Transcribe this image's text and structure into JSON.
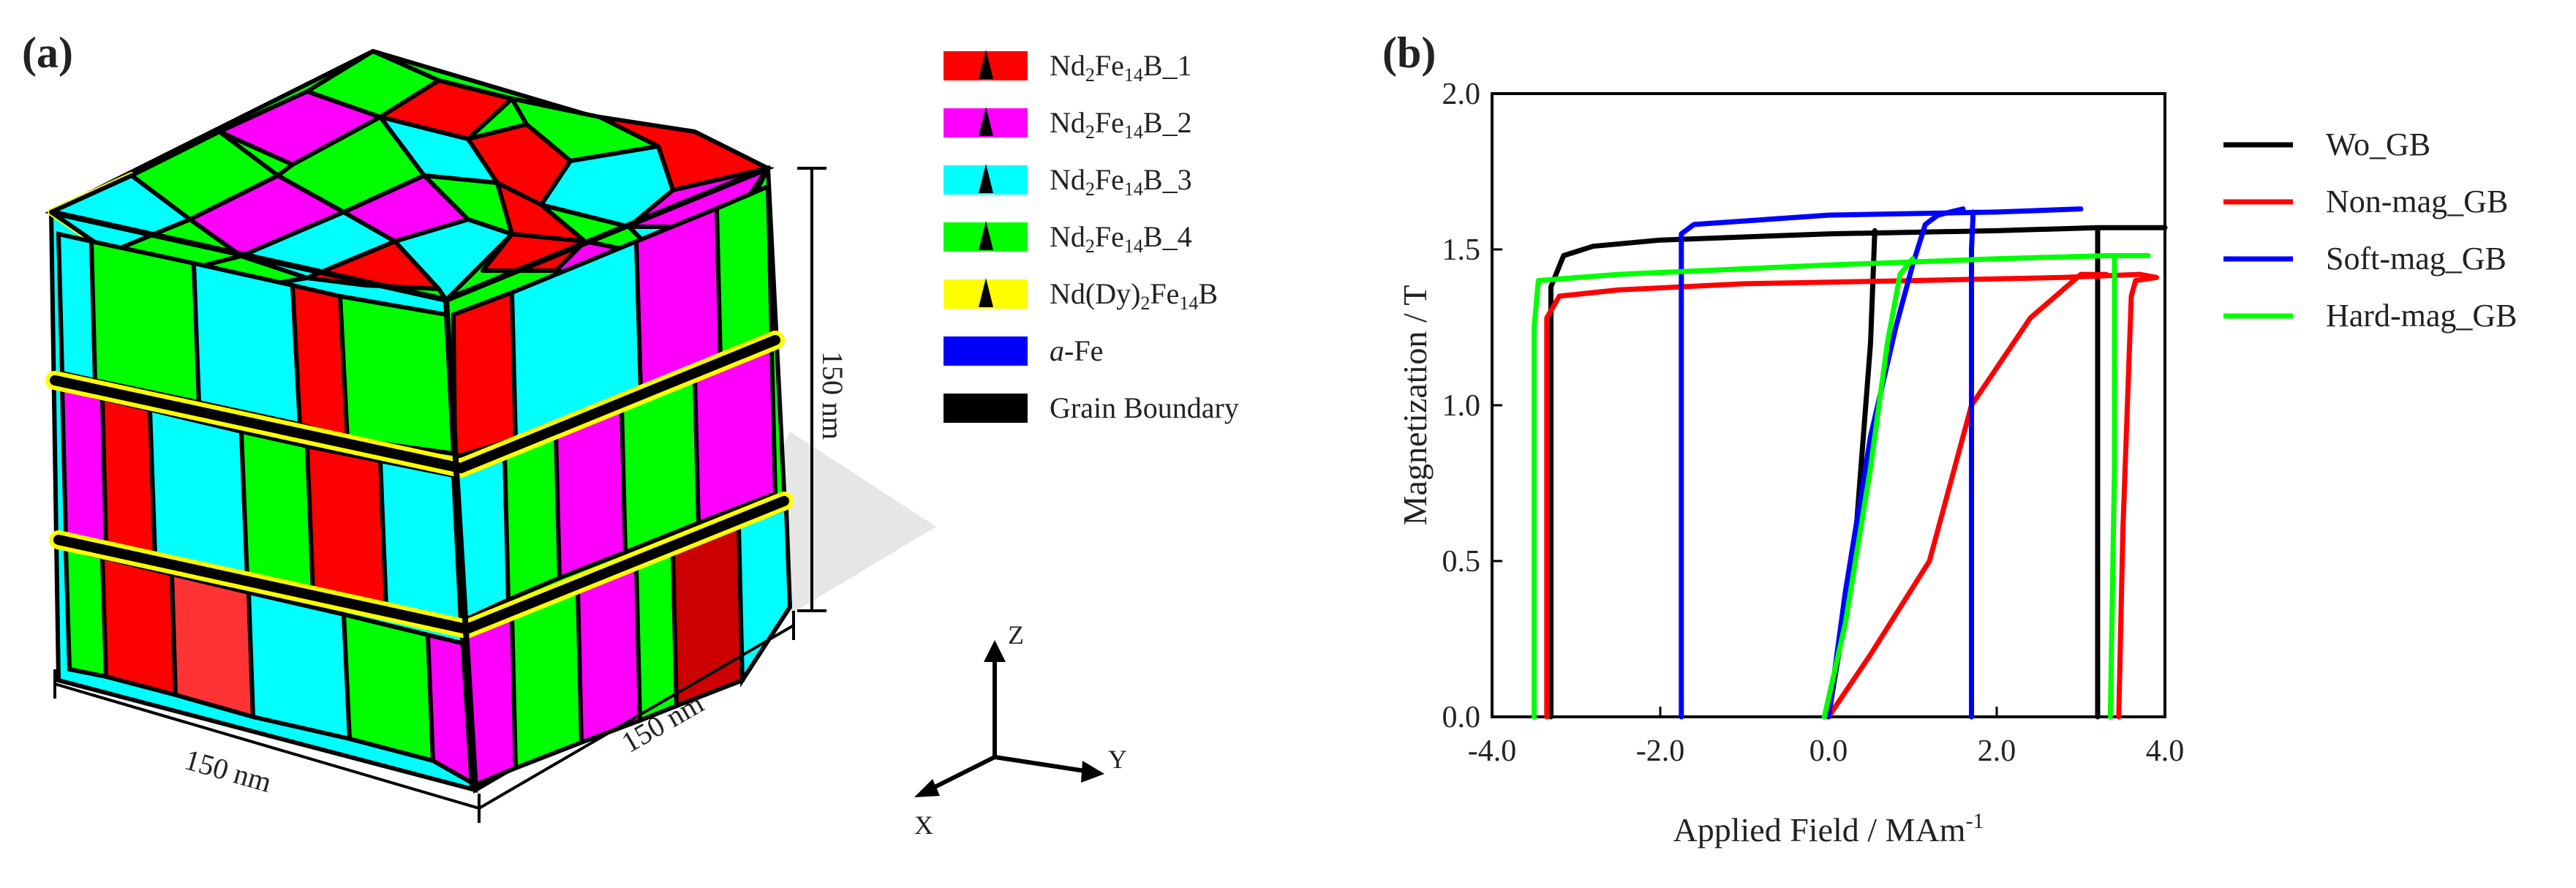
{
  "panel_a": {
    "label": "(a)",
    "dim_bottom": "150 nm",
    "dim_right": "150 nm",
    "dim_height": "150 nm",
    "axes": {
      "z": "Z",
      "y": "Y",
      "x": "X"
    },
    "legend": [
      {
        "base": "Nd",
        "s1": "2",
        "mid": "Fe",
        "s2": "14",
        "tail": "B_1",
        "color": "#ff0000"
      },
      {
        "base": "Nd",
        "s1": "2",
        "mid": "Fe",
        "s2": "14",
        "tail": "B_2",
        "color": "#ff00ff"
      },
      {
        "base": "Nd",
        "s1": "2",
        "mid": "Fe",
        "s2": "14",
        "tail": "B_3",
        "color": "#00ffff"
      },
      {
        "base": "Nd",
        "s1": "2",
        "mid": "Fe",
        "s2": "14",
        "tail": "B_4",
        "color": "#00ff00"
      },
      {
        "base": "Nd(Dy)",
        "s1": "2",
        "mid": "Fe",
        "s2": "14",
        "tail": "B",
        "color": "#ffff00"
      },
      {
        "base": "a",
        "s1": "",
        "mid": "-Fe",
        "s2": "",
        "tail": "",
        "color": "#0000ff"
      },
      {
        "base": "Grain Boundary",
        "s1": "",
        "mid": "",
        "s2": "",
        "tail": "",
        "color": "#000000"
      }
    ]
  },
  "panel_b": {
    "label": "(b)"
  },
  "chart_data": {
    "type": "line",
    "title": "",
    "xlabel": "Applied Field / MAm",
    "xlabel_sup": "-1",
    "ylabel": "Magnetization / T",
    "xlim": [
      -4.0,
      4.0
    ],
    "ylim": [
      0.0,
      2.0
    ],
    "xticks": [
      "-4.0",
      "-2.0",
      "0.0",
      "2.0",
      "4.0"
    ],
    "yticks": [
      "0.0",
      "0.5",
      "1.0",
      "1.5",
      "2.0"
    ],
    "xtick_values": [
      -4.0,
      -2.0,
      0.0,
      2.0,
      4.0
    ],
    "ytick_values": [
      0.0,
      0.5,
      1.0,
      1.5,
      2.0
    ],
    "legend_position": "right",
    "series": [
      {
        "name": "Wo_GB",
        "color": "#000000",
        "x": [
          -3.3,
          -3.3,
          -3.15,
          -2.8,
          -2.0,
          0.0,
          2.0,
          3.2,
          4.0,
          3.2,
          3.2,
          3.2
        ],
        "y": [
          0.0,
          1.38,
          1.48,
          1.51,
          1.53,
          1.55,
          1.56,
          1.57,
          1.57,
          1.57,
          0.8,
          0.0
        ]
      },
      {
        "name": "Wo_GB",
        "color": "#000000",
        "x": [
          0.0,
          0.3,
          0.5,
          0.55
        ],
        "y": [
          0.0,
          0.5,
          1.2,
          1.56
        ]
      },
      {
        "name": "Non-mag_GB",
        "color": "#ff0000",
        "x": [
          -3.35,
          -3.35,
          -3.2,
          -2.5,
          -1.0,
          1.0,
          2.8,
          3.7,
          3.9,
          3.65,
          3.6,
          3.5,
          3.45
        ],
        "y": [
          0.0,
          1.28,
          1.35,
          1.37,
          1.39,
          1.4,
          1.41,
          1.42,
          1.41,
          1.4,
          1.35,
          0.6,
          0.0
        ]
      },
      {
        "name": "Non-mag_GB",
        "color": "#ff0000",
        "x": [
          0.0,
          0.5,
          1.2,
          1.7,
          2.4,
          3.0,
          3.3
        ],
        "y": [
          0.0,
          0.2,
          0.5,
          1.0,
          1.28,
          1.42,
          1.42
        ]
      },
      {
        "name": "Soft-mag_GB",
        "color": "#0000ff",
        "x": [
          -1.75,
          -1.75,
          -1.6,
          0.0,
          2.0,
          3.0
        ],
        "y": [
          0.0,
          1.55,
          1.58,
          1.61,
          1.62,
          1.63
        ]
      },
      {
        "name": "Soft-mag_GB",
        "color": "#0000ff",
        "x": [
          1.7,
          1.7,
          1.72
        ],
        "y": [
          0.0,
          1.5,
          1.62
        ]
      },
      {
        "name": "Soft-mag_GB",
        "color": "#0000ff",
        "x": [
          0.0,
          0.2,
          0.5,
          0.8,
          1.0,
          1.15,
          1.3,
          1.6
        ],
        "y": [
          0.0,
          0.4,
          0.9,
          1.25,
          1.45,
          1.58,
          1.61,
          1.63
        ]
      },
      {
        "name": "Hard-mag_GB",
        "color": "#00ff00",
        "x": [
          -3.5,
          -3.5,
          -3.45,
          -2.5,
          0.0,
          2.0,
          3.3,
          3.8,
          3.4,
          3.4,
          3.35
        ],
        "y": [
          0.0,
          1.25,
          1.4,
          1.42,
          1.45,
          1.47,
          1.48,
          1.48,
          1.48,
          0.8,
          0.0
        ]
      },
      {
        "name": "Hard-mag_GB",
        "color": "#00ff00",
        "x": [
          -0.05,
          0.2,
          0.5,
          0.7,
          0.85,
          1.0
        ],
        "y": [
          0.0,
          0.3,
          0.8,
          1.2,
          1.42,
          1.47
        ]
      }
    ],
    "legend": [
      {
        "name": "Wo_GB",
        "color": "#000000"
      },
      {
        "name": "Non-mag_GB",
        "color": "#ff0000"
      },
      {
        "name": "Soft-mag_GB",
        "color": "#0000ff"
      },
      {
        "name": "Hard-mag_GB",
        "color": "#00ff00"
      }
    ]
  }
}
